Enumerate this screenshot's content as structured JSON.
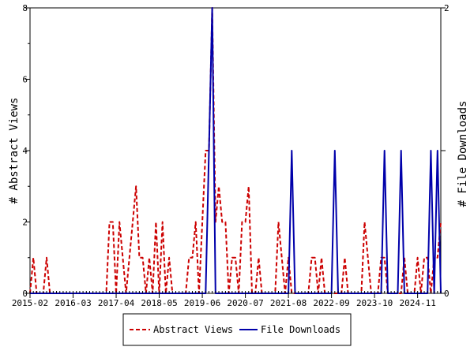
{
  "chart_data": {
    "type": "line",
    "x_tick_labels": [
      "2015-02",
      "2016-03",
      "2017-04",
      "2018-05",
      "2019-06",
      "2020-07",
      "2021-08",
      "2022-09",
      "2023-10",
      "2024-11"
    ],
    "x_range": [
      "2015-02",
      "2025-06"
    ],
    "y_left": {
      "label": "# Abstract Views",
      "ticks": [
        0,
        2,
        4,
        6,
        8
      ],
      "range": [
        0,
        8
      ]
    },
    "y_right": {
      "label": "# File Downloads",
      "ticks": [
        0,
        1,
        2
      ],
      "range": [
        0,
        2
      ]
    },
    "grid": false,
    "legend_position": "bottom",
    "series": [
      {
        "name": "Abstract Views",
        "axis": "left",
        "color": "#cc0000",
        "style": "dashed",
        "points": [
          [
            "2015-02",
            0
          ],
          [
            "2015-03",
            1
          ],
          [
            "2015-04",
            0
          ],
          [
            "2015-05",
            0
          ],
          [
            "2015-06",
            0
          ],
          [
            "2015-07",
            1
          ],
          [
            "2015-08",
            0
          ],
          [
            "2015-09",
            0
          ],
          [
            "2015-10",
            0
          ],
          [
            "2015-11",
            0
          ],
          [
            "2015-12",
            0
          ],
          [
            "2016-01",
            0
          ],
          [
            "2016-02",
            0
          ],
          [
            "2016-03",
            0
          ],
          [
            "2016-04",
            0
          ],
          [
            "2016-05",
            0
          ],
          [
            "2016-06",
            0
          ],
          [
            "2016-07",
            0
          ],
          [
            "2016-08",
            0
          ],
          [
            "2016-09",
            0
          ],
          [
            "2016-10",
            0
          ],
          [
            "2016-11",
            0
          ],
          [
            "2016-12",
            0
          ],
          [
            "2017-01",
            0
          ],
          [
            "2017-02",
            2
          ],
          [
            "2017-03",
            2
          ],
          [
            "2017-04",
            0
          ],
          [
            "2017-05",
            2
          ],
          [
            "2017-06",
            1
          ],
          [
            "2017-07",
            0
          ],
          [
            "2017-08",
            1
          ],
          [
            "2017-09",
            2
          ],
          [
            "2017-10",
            3
          ],
          [
            "2017-11",
            1
          ],
          [
            "2017-12",
            1
          ],
          [
            "2018-01",
            0
          ],
          [
            "2018-02",
            1
          ],
          [
            "2018-03",
            0
          ],
          [
            "2018-04",
            2
          ],
          [
            "2018-05",
            0
          ],
          [
            "2018-06",
            2
          ],
          [
            "2018-07",
            0
          ],
          [
            "2018-08",
            1
          ],
          [
            "2018-09",
            0
          ],
          [
            "2018-10",
            0
          ],
          [
            "2018-11",
            0
          ],
          [
            "2018-12",
            0
          ],
          [
            "2019-01",
            0
          ],
          [
            "2019-02",
            1
          ],
          [
            "2019-03",
            1
          ],
          [
            "2019-04",
            2
          ],
          [
            "2019-05",
            0
          ],
          [
            "2019-06",
            2
          ],
          [
            "2019-07",
            4
          ],
          [
            "2019-08",
            4
          ],
          [
            "2019-09",
            8
          ],
          [
            "2019-10",
            2
          ],
          [
            "2019-11",
            3
          ],
          [
            "2019-12",
            2
          ],
          [
            "2020-01",
            2
          ],
          [
            "2020-02",
            0
          ],
          [
            "2020-03",
            1
          ],
          [
            "2020-04",
            1
          ],
          [
            "2020-05",
            0
          ],
          [
            "2020-06",
            2
          ],
          [
            "2020-07",
            2
          ],
          [
            "2020-08",
            3
          ],
          [
            "2020-09",
            0
          ],
          [
            "2020-10",
            0
          ],
          [
            "2020-11",
            1
          ],
          [
            "2020-12",
            0
          ],
          [
            "2021-01",
            0
          ],
          [
            "2021-02",
            0
          ],
          [
            "2021-03",
            0
          ],
          [
            "2021-04",
            0
          ],
          [
            "2021-05",
            2
          ],
          [
            "2021-06",
            1
          ],
          [
            "2021-07",
            0
          ],
          [
            "2021-08",
            1
          ],
          [
            "2021-09",
            0
          ],
          [
            "2021-10",
            0
          ],
          [
            "2021-11",
            0
          ],
          [
            "2021-12",
            0
          ],
          [
            "2022-01",
            0
          ],
          [
            "2022-02",
            0
          ],
          [
            "2022-03",
            1
          ],
          [
            "2022-04",
            1
          ],
          [
            "2022-05",
            0
          ],
          [
            "2022-06",
            1
          ],
          [
            "2022-07",
            0
          ],
          [
            "2022-08",
            0
          ],
          [
            "2022-09",
            0
          ],
          [
            "2022-10",
            0
          ],
          [
            "2022-11",
            0
          ],
          [
            "2022-12",
            0
          ],
          [
            "2023-01",
            1
          ],
          [
            "2023-02",
            0
          ],
          [
            "2023-03",
            0
          ],
          [
            "2023-04",
            0
          ],
          [
            "2023-05",
            0
          ],
          [
            "2023-06",
            0
          ],
          [
            "2023-07",
            2
          ],
          [
            "2023-08",
            1
          ],
          [
            "2023-09",
            0
          ],
          [
            "2023-10",
            0
          ],
          [
            "2023-11",
            0
          ],
          [
            "2023-12",
            1
          ],
          [
            "2024-01",
            1
          ],
          [
            "2024-02",
            0
          ],
          [
            "2024-03",
            0
          ],
          [
            "2024-04",
            0
          ],
          [
            "2024-05",
            0
          ],
          [
            "2024-06",
            0
          ],
          [
            "2024-07",
            1
          ],
          [
            "2024-08",
            0
          ],
          [
            "2024-09",
            0
          ],
          [
            "2024-10",
            0
          ],
          [
            "2024-11",
            1
          ],
          [
            "2024-12",
            0
          ],
          [
            "2025-01",
            1
          ],
          [
            "2025-02",
            1
          ],
          [
            "2025-03",
            0
          ],
          [
            "2025-04",
            1
          ],
          [
            "2025-05",
            1
          ],
          [
            "2025-06",
            2
          ]
        ]
      },
      {
        "name": "File Downloads",
        "axis": "right",
        "color": "#0000aa",
        "style": "solid",
        "points": [
          [
            "2015-02",
            0
          ],
          [
            "2019-07",
            0
          ],
          [
            "2019-08",
            1
          ],
          [
            "2019-09",
            2
          ],
          [
            "2019-10",
            0
          ],
          [
            "2021-08",
            0
          ],
          [
            "2021-09",
            1
          ],
          [
            "2021-10",
            0
          ],
          [
            "2022-09",
            0
          ],
          [
            "2022-10",
            1
          ],
          [
            "2022-11",
            0
          ],
          [
            "2023-12",
            0
          ],
          [
            "2024-01",
            1
          ],
          [
            "2024-02",
            0
          ],
          [
            "2024-05",
            0
          ],
          [
            "2024-06",
            1
          ],
          [
            "2024-07",
            0
          ],
          [
            "2025-02",
            0
          ],
          [
            "2025-03",
            1
          ],
          [
            "2025-04",
            0
          ],
          [
            "2025-05",
            1
          ],
          [
            "2025-06",
            0
          ]
        ]
      }
    ]
  }
}
